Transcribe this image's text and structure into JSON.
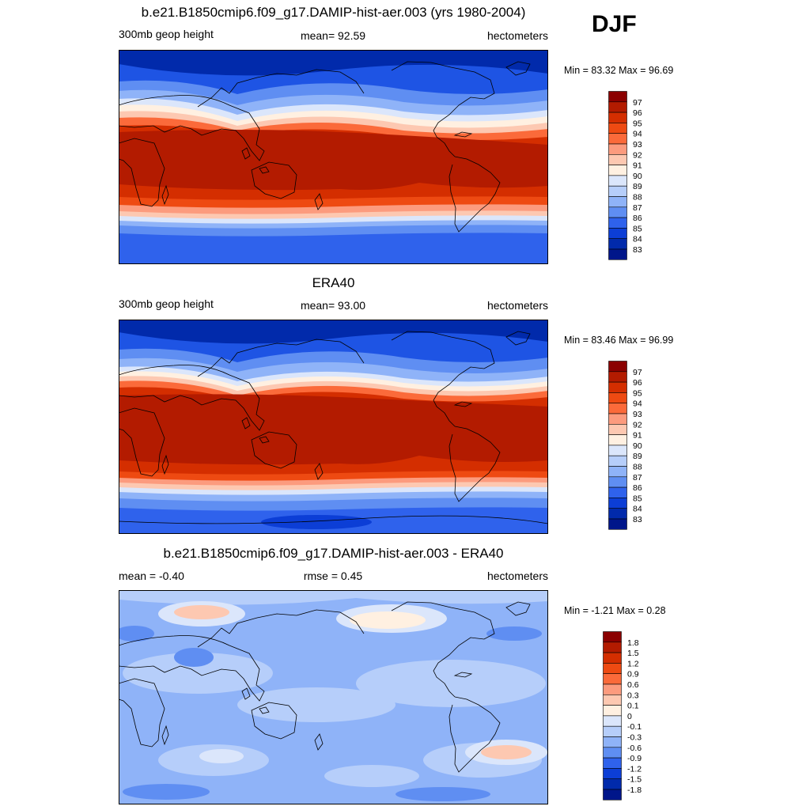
{
  "season": "DJF",
  "panels": [
    {
      "id": "model",
      "title": "b.e21.B1850cmip6.f09_g17.DAMIP-hist-aer.003 (yrs 1980-2004)",
      "left": "300mb geop height",
      "center": "mean=  92.59",
      "right": "hectometers",
      "minmax": "Min =  83.32 Max =  96.69",
      "colorbar": {
        "labels": [
          "97",
          "96",
          "95",
          "94",
          "93",
          "92",
          "91",
          "90",
          "89",
          "88",
          "87",
          "86",
          "85",
          "84",
          "83"
        ],
        "colors": [
          "#8b0000",
          "#b31b00",
          "#d42e00",
          "#ee4a12",
          "#fb6a3a",
          "#fc9b7e",
          "#fdc8b1",
          "#fff0e1",
          "#dbe6fb",
          "#b6cefa",
          "#8fb3f8",
          "#5f8ef2",
          "#2f62ec",
          "#0c3ed6",
          "#012aab",
          "#00168a"
        ]
      }
    },
    {
      "id": "obs",
      "title": "ERA40",
      "left": "300mb geop height",
      "center": "mean=  93.00",
      "right": "hectometers",
      "minmax": "Min =  83.46 Max =  96.99",
      "colorbar": {
        "labels": [
          "97",
          "96",
          "95",
          "94",
          "93",
          "92",
          "91",
          "90",
          "89",
          "88",
          "87",
          "86",
          "85",
          "84",
          "83"
        ],
        "colors": [
          "#8b0000",
          "#b31b00",
          "#d42e00",
          "#ee4a12",
          "#fb6a3a",
          "#fc9b7e",
          "#fdc8b1",
          "#fff0e1",
          "#dbe6fb",
          "#b6cefa",
          "#8fb3f8",
          "#5f8ef2",
          "#2f62ec",
          "#0c3ed6",
          "#012aab",
          "#00168a"
        ]
      }
    },
    {
      "id": "diff",
      "title": "b.e21.B1850cmip6.f09_g17.DAMIP-hist-aer.003 - ERA40",
      "left": "mean =  -0.40",
      "center": "rmse =   0.45",
      "right": "hectometers",
      "minmax": "Min =  -1.21 Max =   0.28",
      "colorbar": {
        "labels": [
          "1.8",
          "1.5",
          "1.2",
          "0.9",
          "0.6",
          "0.3",
          "0.1",
          "0",
          "-0.1",
          "-0.3",
          "-0.6",
          "-0.9",
          "-1.2",
          "-1.5",
          "-1.8"
        ],
        "colors": [
          "#8b0000",
          "#b31b00",
          "#d42e00",
          "#ee4a12",
          "#fb6a3a",
          "#fc9b7e",
          "#fdc8b1",
          "#fff0e1",
          "#dbe6fb",
          "#b6cefa",
          "#8fb3f8",
          "#5f8ef2",
          "#2f62ec",
          "#0c3ed6",
          "#012aab",
          "#00168a"
        ]
      }
    }
  ]
}
